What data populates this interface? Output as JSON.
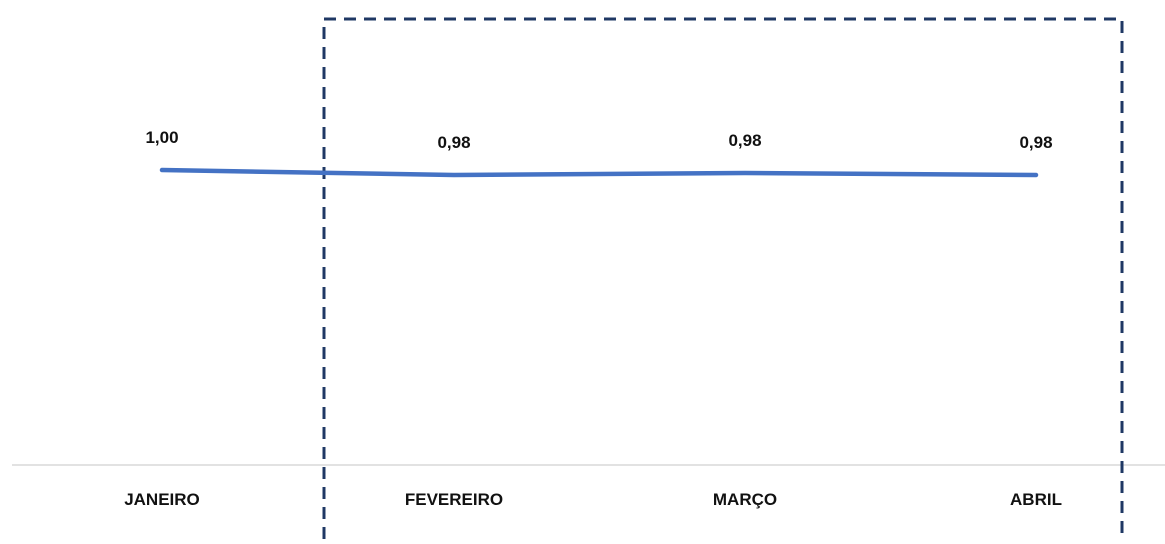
{
  "chart_data": {
    "type": "line",
    "categories": [
      "JANEIRO",
      "FEVEREIRO",
      "MARÇO",
      "ABRIL"
    ],
    "series": [
      {
        "values": [
          1.0,
          0.98,
          0.98,
          0.98
        ],
        "labels": [
          "1,00",
          "0,98",
          "0,98",
          "0,98"
        ]
      }
    ],
    "highlight": {
      "categories": [
        "FEVEREIRO",
        "MARÇO",
        "ABRIL"
      ],
      "style": "dashed-box"
    },
    "title": "",
    "xlabel": "",
    "ylabel": "",
    "grid": false,
    "legend": "none",
    "colors": {
      "line": "#4472C4",
      "highlight_box": "#1F3864",
      "baseline": "#D9D9D9",
      "text": "#111111"
    }
  }
}
